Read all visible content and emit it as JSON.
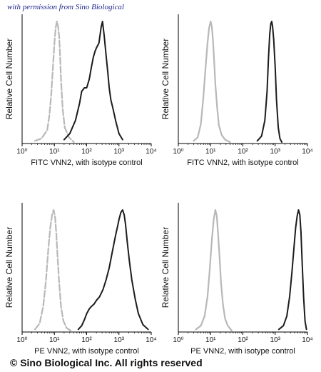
{
  "watermark": "with permission from Sino Biological",
  "copyright": "© Sino Biological Inc. All rights reserved",
  "colors": {
    "isotype": "#b8b8b8",
    "stained": "#1c1c1c",
    "axis": "#000000"
  },
  "chart_data": [
    {
      "type": "line",
      "xlabel": "FITC VNN2, with isotype control",
      "ylabel": "Relative Cell Number",
      "xscale": "log",
      "xlim": [
        1,
        10000
      ],
      "x_ticks": [
        "10⁰",
        "10¹",
        "10²",
        "10³",
        "10⁴"
      ],
      "ylim": [
        0,
        100
      ],
      "grid": false,
      "series": [
        {
          "style": "dashed-gray",
          "x": [
            2.5,
            4,
            6,
            7,
            8,
            9,
            10,
            11,
            12,
            13,
            14,
            15,
            16,
            18,
            21,
            28,
            40
          ],
          "y": [
            1,
            3,
            10,
            22,
            40,
            62,
            82,
            95,
            100,
            96,
            88,
            72,
            52,
            28,
            12,
            4,
            0
          ]
        },
        {
          "style": "solid-dark",
          "x": [
            20,
            30,
            45,
            60,
            70,
            85,
            100,
            120,
            140,
            160,
            180,
            200,
            240,
            280,
            310,
            350,
            400,
            450,
            500,
            560,
            650,
            800,
            1000,
            1300
          ],
          "y": [
            2,
            7,
            18,
            32,
            42,
            45,
            45,
            52,
            62,
            70,
            75,
            78,
            82,
            95,
            100,
            88,
            72,
            58,
            45,
            35,
            28,
            17,
            7,
            2
          ]
        }
      ]
    },
    {
      "type": "line",
      "xlabel": "FITC VNN2, with isotype control",
      "ylabel": "Relative Cell Number",
      "xscale": "log",
      "xlim": [
        1,
        10000
      ],
      "x_ticks": [
        "10⁰",
        "10¹",
        "10²",
        "10³",
        "10⁴"
      ],
      "ylim": [
        0,
        100
      ],
      "grid": false,
      "series": [
        {
          "style": "solid-gray",
          "x": [
            3,
            4,
            5,
            6,
            7,
            8,
            9,
            10,
            11,
            12,
            13,
            14,
            16,
            18,
            22,
            28,
            40
          ],
          "y": [
            1,
            4,
            15,
            38,
            62,
            82,
            95,
            100,
            95,
            82,
            65,
            48,
            28,
            14,
            6,
            2,
            0
          ]
        },
        {
          "style": "solid-dark",
          "x": [
            280,
            380,
            480,
            560,
            620,
            680,
            730,
            780,
            830,
            900,
            1000,
            1100,
            1250,
            1400,
            1600
          ],
          "y": [
            1,
            5,
            18,
            42,
            70,
            90,
            98,
            100,
            96,
            85,
            62,
            35,
            12,
            3,
            0
          ]
        }
      ]
    },
    {
      "type": "line",
      "xlabel": "PE VNN2, with isotype control",
      "ylabel": "Relative Cell Number",
      "xscale": "log",
      "xlim": [
        1,
        10000
      ],
      "x_ticks": [
        "10⁰",
        "10¹",
        "10²",
        "10³",
        "10⁴"
      ],
      "ylim": [
        0,
        100
      ],
      "grid": false,
      "series": [
        {
          "style": "dashed-gray",
          "x": [
            2.5,
            3.5,
            4.5,
            5.5,
            6.5,
            7.5,
            8.5,
            9.5,
            10.5,
            11.5,
            12.5,
            14,
            16,
            19,
            24,
            32
          ],
          "y": [
            1,
            6,
            20,
            42,
            68,
            86,
            96,
            100,
            94,
            80,
            62,
            40,
            20,
            8,
            2,
            0
          ]
        },
        {
          "style": "solid-dark",
          "x": [
            55,
            70,
            85,
            100,
            120,
            140,
            170,
            200,
            250,
            320,
            400,
            500,
            600,
            700,
            800,
            900,
            1000,
            1150,
            1300,
            1450,
            1600,
            1800,
            2100,
            2500,
            3200,
            4000,
            5500,
            8000
          ],
          "y": [
            1,
            4,
            9,
            14,
            18,
            20,
            22,
            25,
            28,
            34,
            42,
            52,
            63,
            72,
            80,
            86,
            92,
            98,
            100,
            96,
            88,
            74,
            58,
            42,
            26,
            14,
            5,
            1
          ]
        }
      ]
    },
    {
      "type": "line",
      "xlabel": "PE VNN2, with isotype control",
      "ylabel": "Relative Cell Number",
      "xscale": "log",
      "xlim": [
        1,
        10000
      ],
      "x_ticks": [
        "10⁰",
        "10¹",
        "10²",
        "10³",
        "10⁴"
      ],
      "ylim": [
        0,
        100
      ],
      "grid": false,
      "series": [
        {
          "style": "solid-gray",
          "x": [
            3.5,
            5,
            6.5,
            8,
            9.5,
            11,
            12.5,
            14,
            15.5,
            17,
            19,
            21,
            24,
            28,
            34,
            45
          ],
          "y": [
            1,
            4,
            12,
            28,
            52,
            76,
            92,
            100,
            95,
            80,
            60,
            40,
            22,
            10,
            4,
            0
          ]
        },
        {
          "style": "solid-dark",
          "x": [
            1300,
            1800,
            2300,
            2800,
            3300,
            3800,
            4300,
            4800,
            5300,
            5800,
            6300,
            6900,
            7600,
            8400,
            9300
          ],
          "y": [
            1,
            4,
            12,
            28,
            48,
            68,
            85,
            95,
            100,
            96,
            82,
            55,
            28,
            8,
            1
          ]
        }
      ]
    }
  ]
}
